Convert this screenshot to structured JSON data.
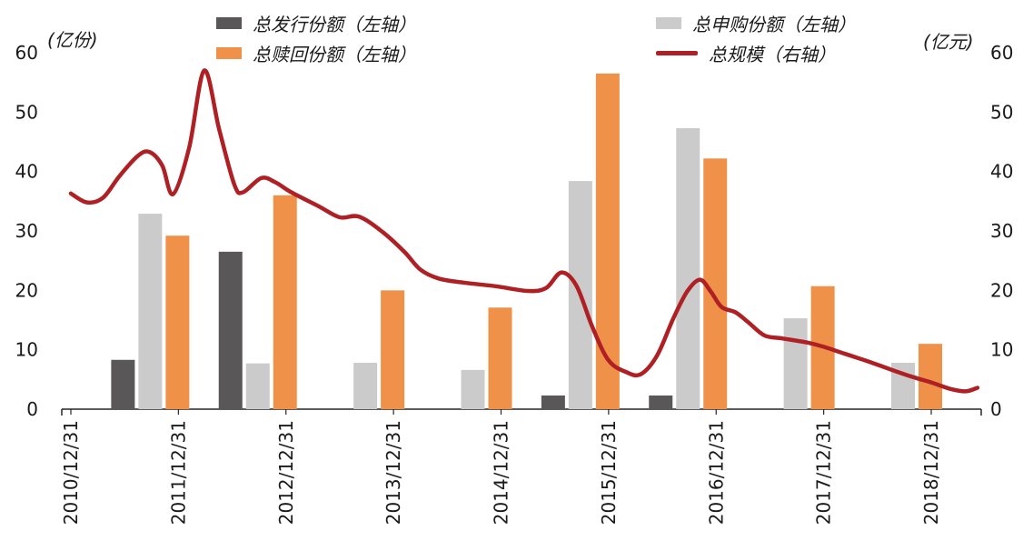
{
  "chart_data": {
    "type": "bar+line combo",
    "title": "",
    "grid": false,
    "legend_position": "top",
    "left_axis": {
      "unit": "(亿份)",
      "min": 0,
      "max": 60,
      "step": 10,
      "ticks": [
        0,
        10,
        20,
        30,
        40,
        50,
        60
      ]
    },
    "right_axis": {
      "unit": "(亿元)",
      "min": 0,
      "max": 60,
      "step": 10,
      "ticks": [
        0,
        10,
        20,
        30,
        40,
        50,
        60
      ]
    },
    "x_tick_labels": [
      "2010/12/31",
      "2011/12/31",
      "2012/12/31",
      "2013/12/31",
      "2014/12/31",
      "2015/12/31",
      "2016/12/31",
      "2017/12/31",
      "2018/12/31"
    ],
    "bar_categories": [
      "2011/12/31",
      "2012/12/31",
      "2013/12/31",
      "2014/12/31",
      "2015/12/31",
      "2016/12/31",
      "2017/12/31",
      "2018/12/31"
    ],
    "bar_series": [
      {
        "key": "issuance",
        "name": "总发行份额（左轴）",
        "axis": "left",
        "color": "#595757",
        "values": [
          8.3,
          26.5,
          0,
          0,
          2.3,
          2.3,
          0,
          0
        ]
      },
      {
        "key": "subscription",
        "name": "总申购份额（左轴）",
        "axis": "left",
        "color": "#cbcbcb",
        "values": [
          32.9,
          7.7,
          7.8,
          6.6,
          38.4,
          47.3,
          15.3,
          7.8
        ]
      },
      {
        "key": "redemption",
        "name": "总赎回份额（左轴）",
        "axis": "left",
        "color": "#F0914A",
        "values": [
          29.2,
          36.0,
          20.0,
          17.1,
          56.5,
          42.2,
          20.7,
          11.0
        ]
      }
    ],
    "line_series": {
      "key": "total-scale",
      "name": "总规模（右轴）",
      "axis": "right",
      "color": "#AF2025",
      "points": [
        [
          0.0,
          36.3
        ],
        [
          0.15,
          34.8
        ],
        [
          0.3,
          35.6
        ],
        [
          0.45,
          39.2
        ],
        [
          0.62,
          42.6
        ],
        [
          0.73,
          43.3
        ],
        [
          0.85,
          41.0
        ],
        [
          0.95,
          36.2
        ],
        [
          1.1,
          44.0
        ],
        [
          1.24,
          57.0
        ],
        [
          1.38,
          47.0
        ],
        [
          1.52,
          37.8
        ],
        [
          1.6,
          36.5
        ],
        [
          1.77,
          38.9
        ],
        [
          1.9,
          38.2
        ],
        [
          2.05,
          36.5
        ],
        [
          2.3,
          34.2
        ],
        [
          2.5,
          32.3
        ],
        [
          2.68,
          32.4
        ],
        [
          2.9,
          29.8
        ],
        [
          3.1,
          26.5
        ],
        [
          3.25,
          23.5
        ],
        [
          3.42,
          22.0
        ],
        [
          3.65,
          21.3
        ],
        [
          3.95,
          20.7
        ],
        [
          4.25,
          19.9
        ],
        [
          4.42,
          20.4
        ],
        [
          4.56,
          23.0
        ],
        [
          4.7,
          20.8
        ],
        [
          4.85,
          13.8
        ],
        [
          5.0,
          8.2
        ],
        [
          5.17,
          6.2
        ],
        [
          5.3,
          5.9
        ],
        [
          5.45,
          9.0
        ],
        [
          5.6,
          15.2
        ],
        [
          5.73,
          19.8
        ],
        [
          5.85,
          21.8
        ],
        [
          5.95,
          19.8
        ],
        [
          6.05,
          17.2
        ],
        [
          6.18,
          16.3
        ],
        [
          6.3,
          14.6
        ],
        [
          6.45,
          12.4
        ],
        [
          6.62,
          11.9
        ],
        [
          6.85,
          11.2
        ],
        [
          7.0,
          10.5
        ],
        [
          7.2,
          9.3
        ],
        [
          7.42,
          8.0
        ],
        [
          7.62,
          6.7
        ],
        [
          7.83,
          5.4
        ],
        [
          8.0,
          4.5
        ],
        [
          8.18,
          3.4
        ],
        [
          8.32,
          3.0
        ],
        [
          8.43,
          3.6
        ]
      ]
    }
  }
}
